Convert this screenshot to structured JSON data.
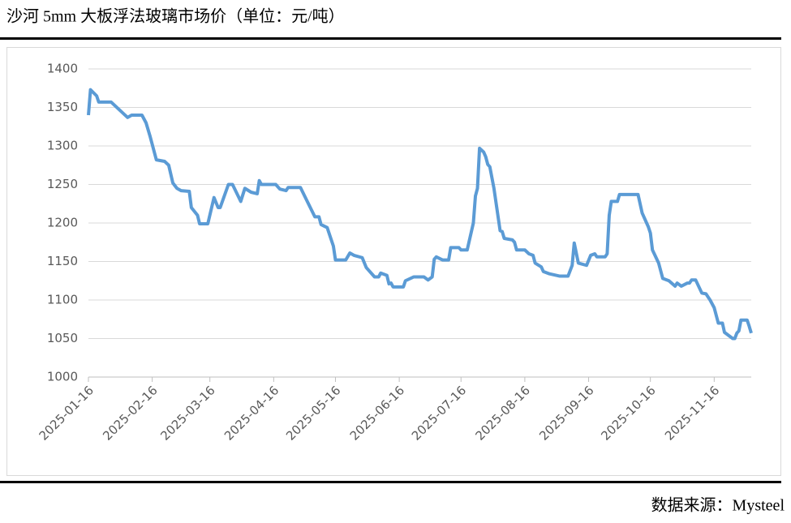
{
  "chart_data": {
    "type": "line",
    "title": "沙河 5mm 大板浮法玻璃市场价（单位：元/吨）",
    "source": "数据来源：Mysteel",
    "color": "#5b9bd5",
    "grid": true,
    "x": [
      "2025-01-16",
      "2025-01-17",
      "2025-01-20",
      "2025-01-21",
      "2025-01-27",
      "2025-02-04",
      "2025-02-06",
      "2025-02-11",
      "2025-02-12",
      "2025-02-13",
      "2025-02-15",
      "2025-02-18",
      "2025-02-22",
      "2025-02-24",
      "2025-02-26",
      "2025-02-28",
      "2025-03-02",
      "2025-03-06",
      "2025-03-07",
      "2025-03-10",
      "2025-03-11",
      "2025-03-15",
      "2025-03-18",
      "2025-03-20",
      "2025-03-21",
      "2025-03-25",
      "2025-03-27",
      "2025-03-31",
      "2025-04-02",
      "2025-04-05",
      "2025-04-08",
      "2025-04-09",
      "2025-04-10",
      "2025-04-17",
      "2025-04-19",
      "2025-04-22",
      "2025-04-23",
      "2025-04-29",
      "2025-05-06",
      "2025-05-08",
      "2025-05-09",
      "2025-05-12",
      "2025-05-15",
      "2025-05-16",
      "2025-05-21",
      "2025-05-23",
      "2025-05-25",
      "2025-05-29",
      "2025-05-31",
      "2025-06-04",
      "2025-06-06",
      "2025-06-07",
      "2025-06-10",
      "2025-06-11",
      "2025-06-12",
      "2025-06-13",
      "2025-06-18",
      "2025-06-19",
      "2025-06-23",
      "2025-06-28",
      "2025-06-30",
      "2025-07-02",
      "2025-07-03",
      "2025-07-04",
      "2025-07-07",
      "2025-07-10",
      "2025-07-11",
      "2025-07-15",
      "2025-07-16",
      "2025-07-19",
      "2025-07-22",
      "2025-07-23",
      "2025-07-24",
      "2025-07-25",
      "2025-07-27",
      "2025-07-28",
      "2025-07-29",
      "2025-07-30",
      "2025-08-01",
      "2025-08-04",
      "2025-08-05",
      "2025-08-06",
      "2025-08-10",
      "2025-08-11",
      "2025-08-12",
      "2025-08-16",
      "2025-08-18",
      "2025-08-20",
      "2025-08-21",
      "2025-08-24",
      "2025-08-25",
      "2025-08-28",
      "2025-09-02",
      "2025-09-06",
      "2025-09-08",
      "2025-09-09",
      "2025-09-11",
      "2025-09-15",
      "2025-09-17",
      "2025-09-19",
      "2025-09-20",
      "2025-09-24",
      "2025-09-25",
      "2025-09-26",
      "2025-09-27",
      "2025-09-30",
      "2025-10-01",
      "2025-10-10",
      "2025-10-12",
      "2025-10-15",
      "2025-10-16",
      "2025-10-17",
      "2025-10-20",
      "2025-10-22",
      "2025-10-25",
      "2025-10-28",
      "2025-10-29",
      "2025-10-31",
      "2025-11-03",
      "2025-11-04",
      "2025-11-05",
      "2025-11-07",
      "2025-11-10",
      "2025-11-12",
      "2025-11-14",
      "2025-11-16",
      "2025-11-18",
      "2025-11-20",
      "2025-11-21",
      "2025-11-25",
      "2025-11-26",
      "2025-11-27",
      "2025-11-28",
      "2025-11-29",
      "2025-12-02",
      "2025-12-03",
      "2025-12-04"
    ],
    "values": [
      1340,
      1373,
      1365,
      1357,
      1357,
      1337,
      1340,
      1340,
      1335,
      1330,
      1312,
      1282,
      1280,
      1275,
      1252,
      1245,
      1242,
      1241,
      1220,
      1210,
      1199,
      1199,
      1233,
      1220,
      1220,
      1250,
      1250,
      1228,
      1245,
      1240,
      1238,
      1255,
      1250,
      1250,
      1244,
      1242,
      1246,
      1246,
      1208,
      1208,
      1198,
      1194,
      1170,
      1152,
      1152,
      1161,
      1158,
      1155,
      1142,
      1130,
      1130,
      1135,
      1132,
      1121,
      1122,
      1117,
      1117,
      1125,
      1130,
      1130,
      1126,
      1130,
      1153,
      1156,
      1152,
      1152,
      1168,
      1168,
      1165,
      1165,
      1200,
      1235,
      1245,
      1297,
      1292,
      1286,
      1276,
      1273,
      1245,
      1190,
      1189,
      1180,
      1178,
      1175,
      1165,
      1165,
      1160,
      1158,
      1148,
      1143,
      1137,
      1134,
      1131,
      1131,
      1145,
      1174,
      1148,
      1145,
      1158,
      1160,
      1156,
      1156,
      1160,
      1210,
      1228,
      1228,
      1237,
      1237,
      1213,
      1195,
      1187,
      1165,
      1148,
      1128,
      1125,
      1118,
      1122,
      1118,
      1122,
      1122,
      1126,
      1126,
      1109,
      1108,
      1100,
      1090,
      1070,
      1070,
      1058,
      1050,
      1050,
      1057,
      1060,
      1074,
      1074,
      1066,
      1057
    ],
    "xlim": [
      "2025-01-16",
      "2025-12-04"
    ],
    "xticks": [
      "2025-01-16",
      "2025-02-16",
      "2025-03-16",
      "2025-04-16",
      "2025-05-16",
      "2025-06-16",
      "2025-07-16",
      "2025-08-16",
      "2025-09-16",
      "2025-10-16",
      "2025-11-16"
    ],
    "ylim": [
      1000,
      1400
    ],
    "yticks": [
      1000,
      1050,
      1100,
      1150,
      1200,
      1250,
      1300,
      1350,
      1400
    ]
  }
}
